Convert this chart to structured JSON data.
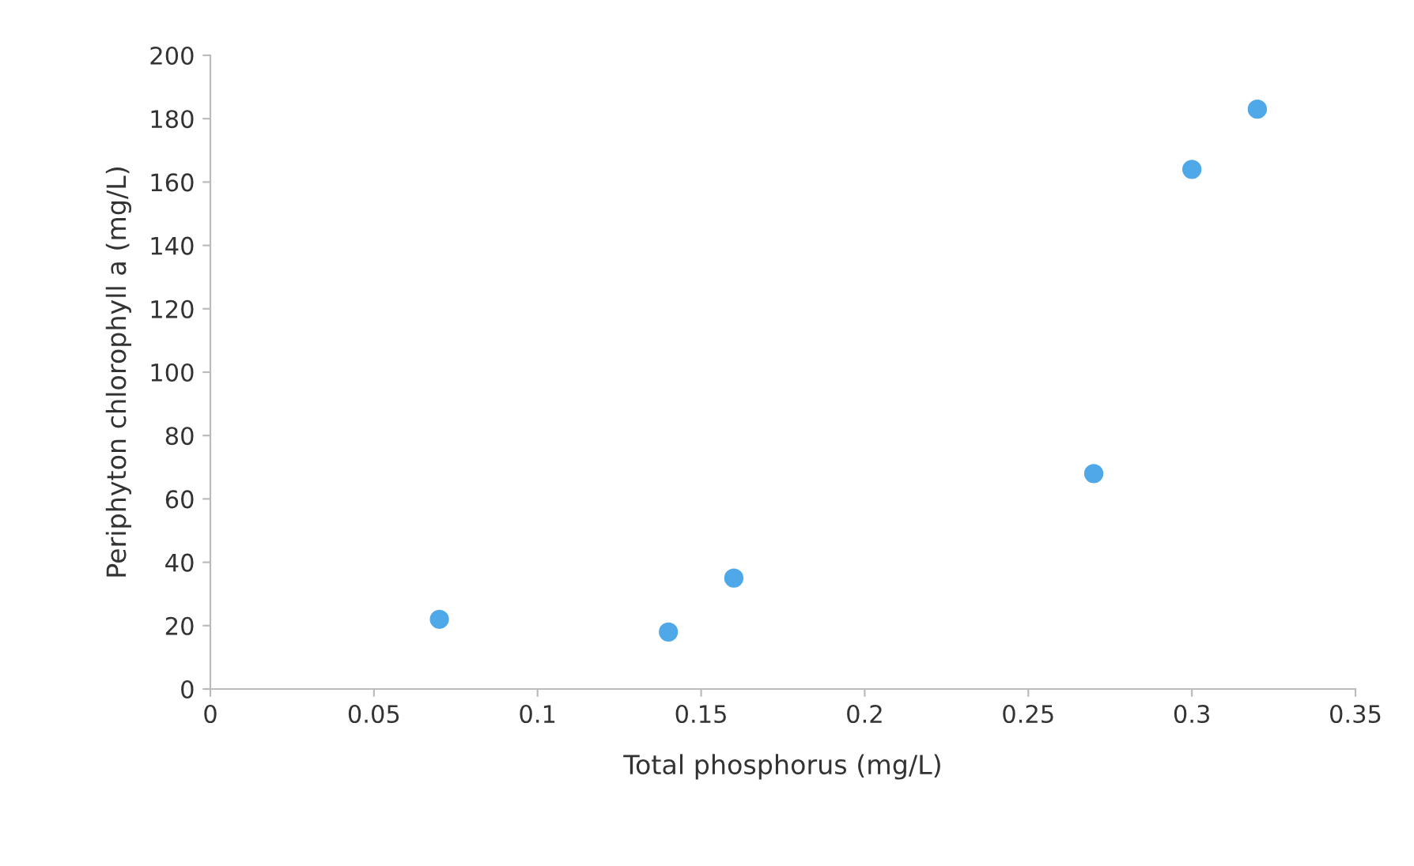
{
  "chart_data": {
    "type": "scatter",
    "xlabel": "Total phosphorus (mg/L)",
    "ylabel": "Periphyton chlorophyll a (mg/L)",
    "x": [
      0.07,
      0.14,
      0.16,
      0.27,
      0.3,
      0.32
    ],
    "series": [
      {
        "color": "#4fa8e8",
        "values": [
          22,
          18,
          35,
          68,
          164,
          183
        ]
      }
    ],
    "xlim": [
      0,
      0.35
    ],
    "xticks": [
      0,
      0.05,
      0.1,
      0.15,
      0.2,
      0.25,
      0.3,
      0.35
    ],
    "ylim": [
      0,
      200
    ],
    "yticks": [
      0,
      20,
      40,
      60,
      80,
      100,
      120,
      140,
      160,
      180,
      200
    ],
    "grid": false,
    "legend": false,
    "marker": "circle"
  }
}
